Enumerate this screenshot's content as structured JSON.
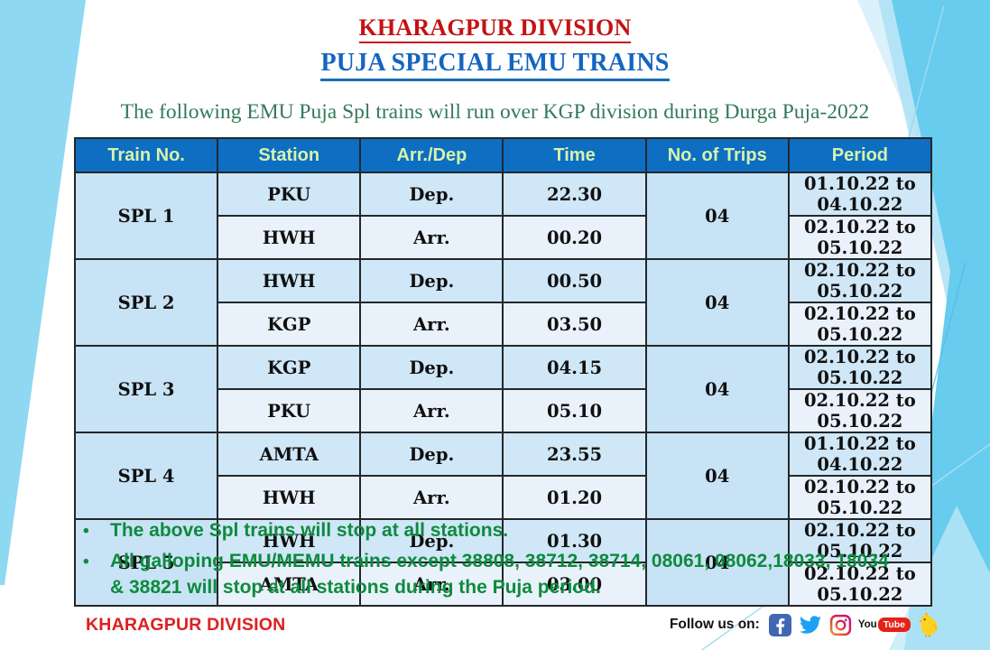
{
  "slide": {
    "title": "KHARAGPUR DIVISION",
    "subtitle": "PUJA SPECIAL EMU TRAINS",
    "intro": "The following EMU Puja Spl trains will run over KGP division during Durga Puja-2022"
  },
  "table": {
    "headers": [
      "Train No.",
      "Station",
      "Arr./Dep",
      "Time",
      "No. of Trips",
      "Period"
    ],
    "trains": [
      {
        "train_no": "SPL 1",
        "trips": "04",
        "rows": [
          {
            "station": "PKU",
            "arr_dep": "Dep.",
            "time": "22.30",
            "period": "01.10.22 to 04.10.22"
          },
          {
            "station": "HWH",
            "arr_dep": "Arr.",
            "time": "00.20",
            "period": "02.10.22 to 05.10.22"
          }
        ]
      },
      {
        "train_no": "SPL 2",
        "trips": "04",
        "rows": [
          {
            "station": "HWH",
            "arr_dep": "Dep.",
            "time": "00.50",
            "period": "02.10.22 to 05.10.22"
          },
          {
            "station": "KGP",
            "arr_dep": "Arr.",
            "time": "03.50",
            "period": "02.10.22 to 05.10.22"
          }
        ]
      },
      {
        "train_no": "SPL 3",
        "trips": "04",
        "rows": [
          {
            "station": "KGP",
            "arr_dep": "Dep.",
            "time": "04.15",
            "period": "02.10.22 to 05.10.22"
          },
          {
            "station": "PKU",
            "arr_dep": "Arr.",
            "time": "05.10",
            "period": "02.10.22 to 05.10.22"
          }
        ]
      },
      {
        "train_no": "SPL 4",
        "trips": "04",
        "rows": [
          {
            "station": "AMTA",
            "arr_dep": "Dep.",
            "time": "23.55",
            "period": "01.10.22 to 04.10.22"
          },
          {
            "station": "HWH",
            "arr_dep": "Arr.",
            "time": "01.20",
            "period": "02.10.22 to 05.10.22"
          }
        ]
      },
      {
        "train_no": "SPL 5",
        "trips": "04",
        "rows": [
          {
            "station": "HWH",
            "arr_dep": "Dep.",
            "time": "01.30",
            "period": "02.10.22 to 05.10.22"
          },
          {
            "station": "AMTA",
            "arr_dep": "Arr.",
            "time": "03.00",
            "period": "02.10.22 to 05.10.22"
          }
        ]
      }
    ]
  },
  "notes": [
    "The above Spl trains will stop at all stations.",
    "All galloping EMU/MEMU trains except 38808, 38712, 38714, 08061, 08062,18033, 18034 & 38821 will stop at all stations during the Puja period."
  ],
  "footer": {
    "division": "KHARAGPUR DIVISION",
    "follow_label": "Follow us on:",
    "social_icons": [
      "facebook",
      "twitter",
      "instagram",
      "youtube",
      "koo"
    ],
    "youtube_you": "You",
    "youtube_tube": "Tube"
  },
  "colors": {
    "title_red": "#c41212",
    "subtitle_blue": "#1565c0",
    "intro_green": "#337a58",
    "note_green": "#0e8a3e",
    "footer_red": "#dd2020",
    "header_bg": "#0d6ec2",
    "header_text": "#d6f2ae",
    "row_dark": "#cfe7f7",
    "row_light": "#e9f2fb",
    "merged_cell": "#c8e3f5",
    "left_band_blue": "#8ed8f2",
    "right_cyan": "#67ccee"
  }
}
